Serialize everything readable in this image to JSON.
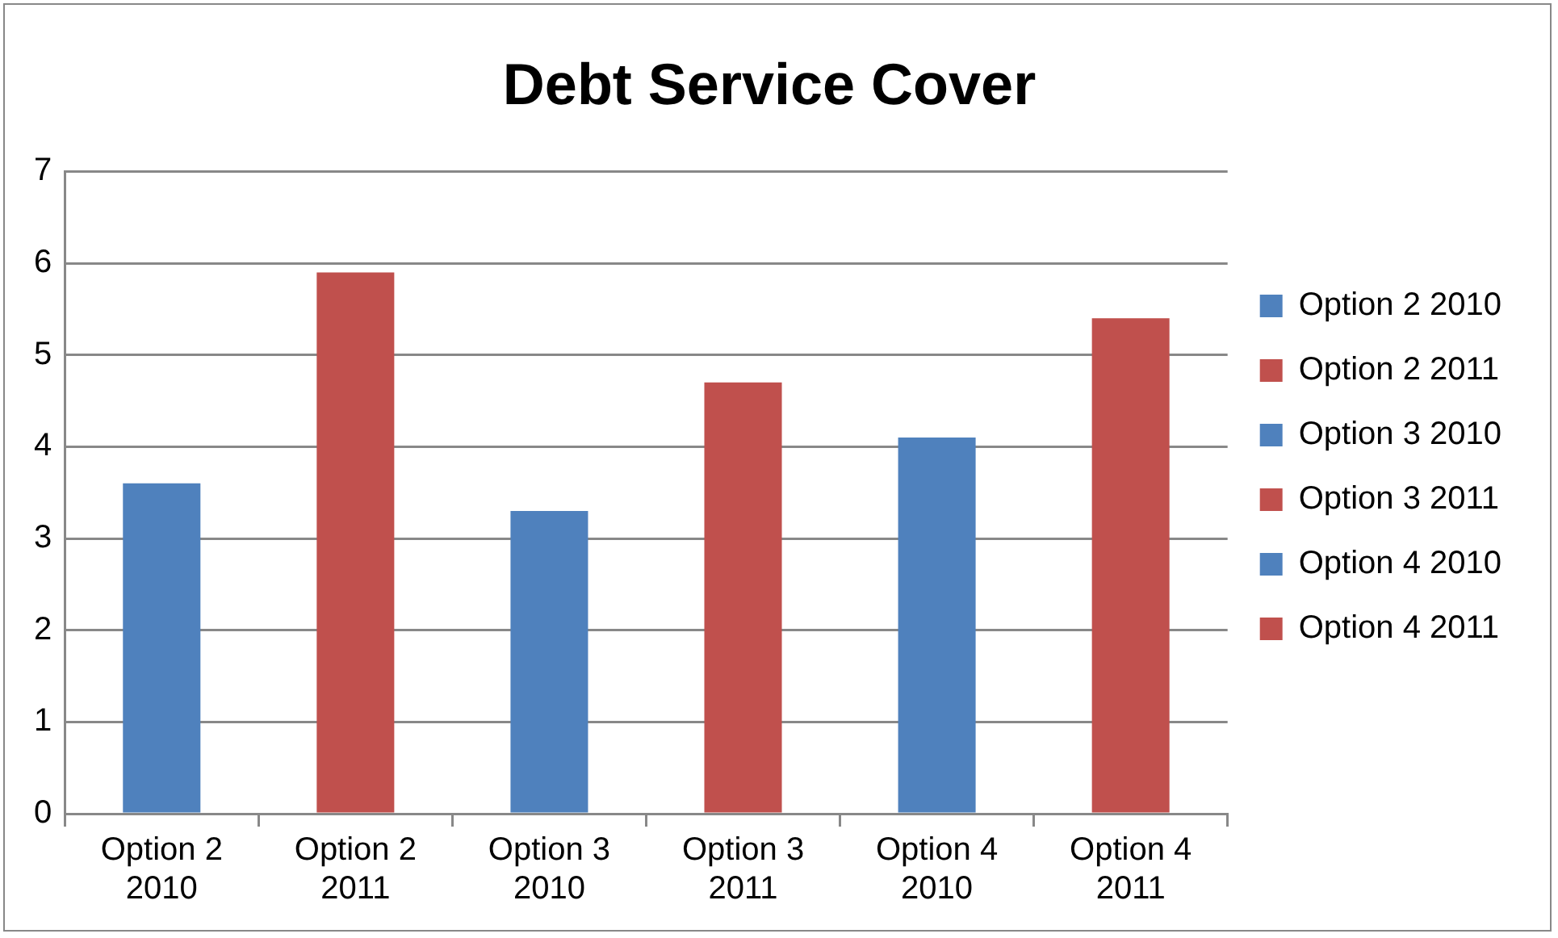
{
  "chart_data": {
    "type": "bar",
    "title": "Debt Service Cover",
    "categories": [
      "Option 2 2010",
      "Option 2 2011",
      "Option 3 2010",
      "Option 3 2011",
      "Option 4 2010",
      "Option 4 2011"
    ],
    "series": [
      {
        "name": "Option 2 2010",
        "color": "#4f81bd",
        "values": [
          3.6,
          null,
          null,
          null,
          null,
          null
        ]
      },
      {
        "name": "Option 2 2011",
        "color": "#c0504d",
        "values": [
          null,
          5.9,
          null,
          null,
          null,
          null
        ]
      },
      {
        "name": "Option 3 2010",
        "color": "#4f81bd",
        "values": [
          null,
          null,
          3.3,
          null,
          null,
          null
        ]
      },
      {
        "name": "Option 3 2011",
        "color": "#c0504d",
        "values": [
          null,
          null,
          null,
          4.7,
          null,
          null
        ]
      },
      {
        "name": "Option 4 2010",
        "color": "#4f81bd",
        "values": [
          null,
          null,
          null,
          null,
          4.1,
          null
        ]
      },
      {
        "name": "Option 4 2011",
        "color": "#c0504d",
        "values": [
          null,
          null,
          null,
          null,
          null,
          5.4
        ]
      }
    ],
    "ylim": [
      0,
      7
    ],
    "yticks": [
      0,
      1,
      2,
      3,
      4,
      5,
      6,
      7
    ],
    "grid": "y",
    "legend": "right"
  }
}
